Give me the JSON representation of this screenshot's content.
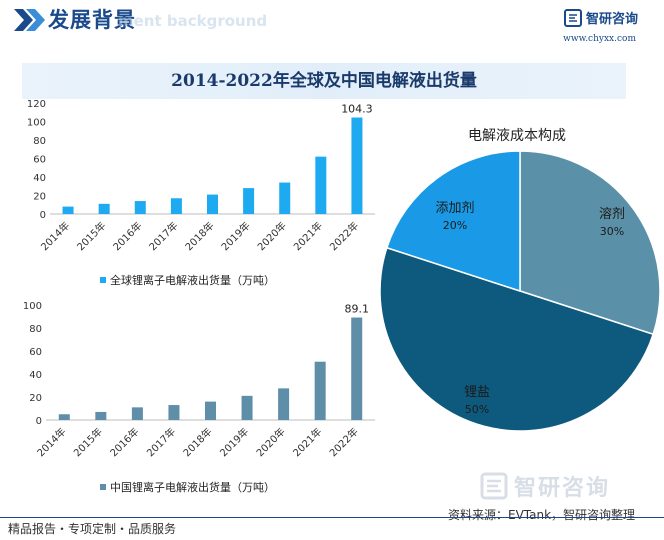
{
  "header": {
    "title": "发展背景",
    "subtitle_en": "ment background",
    "brand": "智研咨询",
    "website": "www.chyxx.com"
  },
  "banner_title": "2014-2022年全球及中国电解液出货量",
  "footer": {
    "left": "精品报告・专项定制・品质服务",
    "source": "资料来源：EVTank，智研咨询整理",
    "watermark": "智研咨询"
  },
  "colors": {
    "global_bar": "#1eaaf1",
    "china_bar": "#5e8ea8",
    "pie": [
      "#5b91a8",
      "#0e5a7e",
      "#1a9ae6"
    ]
  },
  "chart_data": [
    {
      "type": "bar",
      "id": "global",
      "categories": [
        "2014年",
        "2015年",
        "2016年",
        "2017年",
        "2018年",
        "2019年",
        "2020年",
        "2021年",
        "2022年"
      ],
      "values": [
        8,
        11,
        14,
        17,
        21,
        28,
        34,
        62,
        104.3
      ],
      "data_labels": {
        "2022年": "104.3"
      },
      "yticks": [
        0,
        20,
        40,
        60,
        80,
        100,
        120
      ],
      "ylim": [
        0,
        120
      ],
      "legend": "全球锂离子电解液出货量（万吨）"
    },
    {
      "type": "bar",
      "id": "china",
      "categories": [
        "2014年",
        "2015年",
        "2016年",
        "2017年",
        "2018年",
        "2019年",
        "2020年",
        "2021年",
        "2022年"
      ],
      "values": [
        5,
        7,
        11,
        13,
        16,
        21,
        27.5,
        50.7,
        89.1
      ],
      "data_labels": {
        "2022年": "89.1"
      },
      "yticks": [
        0,
        20,
        40,
        60,
        80,
        100
      ],
      "ylim": [
        0,
        100
      ],
      "legend": "中国锂离子电解液出货量（万吨）"
    },
    {
      "type": "pie",
      "id": "composition",
      "title": "电解液成本构成",
      "slices": [
        {
          "label": "溶剂",
          "value": 30,
          "pct": "30%"
        },
        {
          "label": "锂盐",
          "value": 50,
          "pct": "50%"
        },
        {
          "label": "添加剂",
          "value": 20,
          "pct": "20%"
        }
      ]
    }
  ]
}
